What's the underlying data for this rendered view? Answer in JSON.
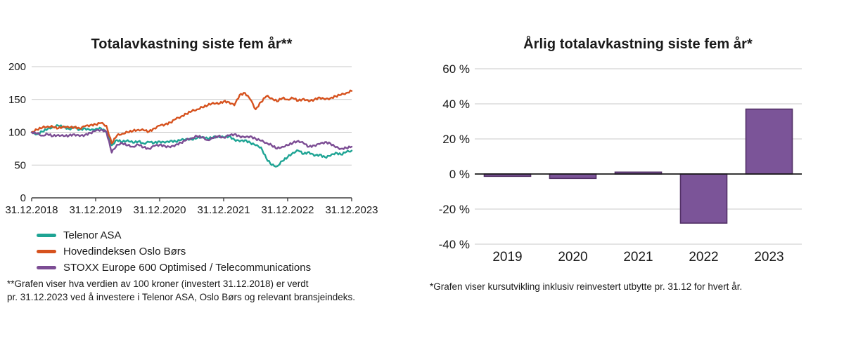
{
  "page": {
    "background": "#ffffff"
  },
  "chart_data": [
    {
      "type": "line",
      "title": "Totalavkastning siste fem år**",
      "xlabel": "",
      "ylabel": "",
      "ylim": [
        0,
        200
      ],
      "y_ticks": [
        0,
        50,
        100,
        150,
        200
      ],
      "x_tick_labels": [
        "31.12.2018",
        "31.12.2019",
        "31.12.2020",
        "31.12.2021",
        "31.12.2022",
        "31.12.2023"
      ],
      "grid": true,
      "grid_color": "#c9c9c9",
      "axis_color": "#3f3f3f",
      "text_color": "#1a1a1a",
      "legend_position": "bottom-left",
      "baseline_value": 100,
      "series": [
        {
          "name": "Telenor ASA",
          "color": "#1ea494",
          "data_name": "telenor-series-line",
          "values": [
            100,
            97,
            101,
            105,
            108,
            110,
            108,
            105,
            107,
            104,
            106,
            103,
            105,
            106,
            100,
            80,
            88,
            85,
            88,
            84,
            86,
            83,
            85,
            84,
            86,
            84,
            87,
            86,
            88,
            90,
            89,
            91,
            93,
            90,
            92,
            94,
            92,
            94,
            89,
            86,
            88,
            84,
            80,
            77,
            60,
            50,
            48,
            56,
            62,
            69,
            72,
            67,
            70,
            64,
            66,
            62,
            64,
            69,
            66,
            70,
            72
          ]
        },
        {
          "name": "Hovedindeksen Oslo Børs",
          "color": "#d6521e",
          "data_name": "oslo-bors-series-line",
          "values": [
            100,
            104,
            107,
            109,
            108,
            106,
            109,
            107,
            108,
            106,
            109,
            111,
            112,
            114,
            110,
            83,
            95,
            98,
            100,
            102,
            104,
            103,
            101,
            106,
            110,
            112,
            115,
            120,
            124,
            128,
            132,
            135,
            138,
            141,
            145,
            143,
            147,
            146,
            141,
            157,
            160,
            150,
            135,
            146,
            155,
            152,
            147,
            152,
            150,
            152,
            148,
            151,
            147,
            150,
            153,
            150,
            152,
            155,
            157,
            160,
            163
          ]
        },
        {
          "name": "STOXX Europe 600 Optimised / Telecommunications",
          "color": "#7c4d94",
          "data_name": "stoxx-series-line",
          "values": [
            100,
            98,
            95,
            97,
            94,
            96,
            94,
            95,
            97,
            94,
            96,
            99,
            102,
            104,
            101,
            69,
            81,
            83,
            80,
            78,
            81,
            77,
            75,
            79,
            81,
            79,
            77,
            81,
            84,
            88,
            91,
            94,
            92,
            88,
            91,
            94,
            92,
            95,
            97,
            94,
            92,
            94,
            90,
            87,
            84,
            80,
            75,
            78,
            80,
            84,
            87,
            83,
            78,
            80,
            82,
            85,
            83,
            77,
            75,
            76,
            78
          ]
        }
      ],
      "footnote_line1": "**Grafen viser hva verdien av 100 kroner (investert 31.12.2018) er verdt",
      "footnote_line2": "pr. 31.12.2023 ved å investere i Telenor ASA, Oslo Børs og relevant bransjeindeks."
    },
    {
      "type": "bar",
      "title": "Årlig totalavkastning siste fem år*",
      "xlabel": "",
      "ylabel": "",
      "unit": "%",
      "categories": [
        "2019",
        "2020",
        "2021",
        "2022",
        "2023"
      ],
      "values": [
        -1.3,
        -2.5,
        1.1,
        -28,
        37
      ],
      "ylim": [
        -40,
        60
      ],
      "y_ticks": [
        60,
        40,
        20,
        0,
        -20,
        -40
      ],
      "grid": true,
      "grid_color": "#c9c9c9",
      "zero_line_color": "#1a1a1a",
      "text_color": "#1a1a1a",
      "bar_color": "#7b5498",
      "bar_border_color": "#523066",
      "footnote": "*Grafen viser kursutvikling inklusiv reinvestert utbytte pr. 31.12 for hvert år."
    }
  ]
}
